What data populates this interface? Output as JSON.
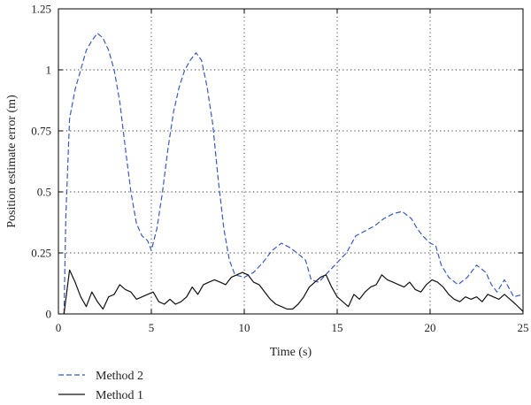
{
  "chart_data": {
    "type": "line",
    "xlabel": "Time (s)",
    "ylabel": "Position estimate error (m)",
    "xlim": [
      0,
      25
    ],
    "ylim": [
      0,
      1.25
    ],
    "x_ticks": [
      "0",
      "5",
      "10",
      "15",
      "20",
      "25"
    ],
    "y_ticks": [
      "0",
      "0.25",
      "0.5",
      "0.75",
      "1",
      "1.25"
    ],
    "grid": "dotted, at major ticks",
    "legend_placement": "below plot, left",
    "series": [
      {
        "name": "Method 2",
        "color": "#3a5bbf",
        "style": "dashed",
        "points": [
          [
            0.3,
            0.0
          ],
          [
            0.4,
            0.4
          ],
          [
            0.6,
            0.8
          ],
          [
            0.9,
            0.92
          ],
          [
            1.2,
            1.0
          ],
          [
            1.5,
            1.08
          ],
          [
            1.8,
            1.12
          ],
          [
            2.1,
            1.15
          ],
          [
            2.4,
            1.13
          ],
          [
            2.7,
            1.08
          ],
          [
            3.0,
            1.0
          ],
          [
            3.3,
            0.87
          ],
          [
            3.6,
            0.68
          ],
          [
            3.9,
            0.5
          ],
          [
            4.2,
            0.37
          ],
          [
            4.5,
            0.32
          ],
          [
            4.8,
            0.3
          ],
          [
            5.0,
            0.26
          ],
          [
            5.3,
            0.35
          ],
          [
            5.6,
            0.5
          ],
          [
            5.9,
            0.68
          ],
          [
            6.2,
            0.83
          ],
          [
            6.5,
            0.93
          ],
          [
            6.8,
            1.0
          ],
          [
            7.1,
            1.04
          ],
          [
            7.4,
            1.07
          ],
          [
            7.7,
            1.04
          ],
          [
            8.0,
            0.93
          ],
          [
            8.3,
            0.78
          ],
          [
            8.6,
            0.55
          ],
          [
            8.9,
            0.35
          ],
          [
            9.2,
            0.22
          ],
          [
            9.5,
            0.16
          ],
          [
            10.0,
            0.15
          ],
          [
            10.5,
            0.17
          ],
          [
            11.0,
            0.21
          ],
          [
            11.5,
            0.26
          ],
          [
            12.0,
            0.29
          ],
          [
            12.5,
            0.27
          ],
          [
            13.0,
            0.24
          ],
          [
            13.3,
            0.22
          ],
          [
            13.6,
            0.14
          ],
          [
            14.0,
            0.13
          ],
          [
            14.5,
            0.17
          ],
          [
            15.0,
            0.21
          ],
          [
            15.5,
            0.25
          ],
          [
            16.0,
            0.32
          ],
          [
            16.5,
            0.34
          ],
          [
            17.0,
            0.36
          ],
          [
            17.5,
            0.39
          ],
          [
            18.0,
            0.41
          ],
          [
            18.5,
            0.42
          ],
          [
            19.0,
            0.39
          ],
          [
            19.3,
            0.35
          ],
          [
            19.6,
            0.32
          ],
          [
            20.0,
            0.29
          ],
          [
            20.3,
            0.28
          ],
          [
            20.6,
            0.2
          ],
          [
            21.0,
            0.15
          ],
          [
            21.5,
            0.12
          ],
          [
            22.0,
            0.15
          ],
          [
            22.5,
            0.2
          ],
          [
            23.0,
            0.17
          ],
          [
            23.3,
            0.12
          ],
          [
            23.6,
            0.09
          ],
          [
            24.0,
            0.14
          ],
          [
            24.5,
            0.07
          ],
          [
            25.0,
            0.08
          ]
        ]
      },
      {
        "name": "Method 1",
        "color": "#111111",
        "style": "solid",
        "points": [
          [
            0.3,
            0.0
          ],
          [
            0.6,
            0.18
          ],
          [
            0.9,
            0.13
          ],
          [
            1.2,
            0.07
          ],
          [
            1.5,
            0.03
          ],
          [
            1.8,
            0.09
          ],
          [
            2.1,
            0.05
          ],
          [
            2.4,
            0.02
          ],
          [
            2.7,
            0.07
          ],
          [
            3.0,
            0.08
          ],
          [
            3.3,
            0.12
          ],
          [
            3.6,
            0.1
          ],
          [
            3.9,
            0.09
          ],
          [
            4.2,
            0.06
          ],
          [
            4.5,
            0.07
          ],
          [
            4.8,
            0.08
          ],
          [
            5.1,
            0.09
          ],
          [
            5.4,
            0.05
          ],
          [
            5.7,
            0.04
          ],
          [
            6.0,
            0.06
          ],
          [
            6.3,
            0.04
          ],
          [
            6.6,
            0.05
          ],
          [
            6.9,
            0.07
          ],
          [
            7.2,
            0.11
          ],
          [
            7.5,
            0.08
          ],
          [
            7.8,
            0.12
          ],
          [
            8.1,
            0.13
          ],
          [
            8.4,
            0.14
          ],
          [
            8.7,
            0.13
          ],
          [
            9.0,
            0.12
          ],
          [
            9.3,
            0.15
          ],
          [
            9.6,
            0.16
          ],
          [
            9.9,
            0.17
          ],
          [
            10.2,
            0.16
          ],
          [
            10.5,
            0.13
          ],
          [
            10.8,
            0.12
          ],
          [
            11.1,
            0.09
          ],
          [
            11.4,
            0.06
          ],
          [
            11.7,
            0.04
          ],
          [
            12.0,
            0.03
          ],
          [
            12.3,
            0.02
          ],
          [
            12.6,
            0.02
          ],
          [
            12.9,
            0.04
          ],
          [
            13.2,
            0.07
          ],
          [
            13.5,
            0.11
          ],
          [
            13.8,
            0.13
          ],
          [
            14.1,
            0.15
          ],
          [
            14.4,
            0.16
          ],
          [
            14.7,
            0.11
          ],
          [
            15.0,
            0.07
          ],
          [
            15.3,
            0.05
          ],
          [
            15.6,
            0.03
          ],
          [
            15.9,
            0.08
          ],
          [
            16.2,
            0.06
          ],
          [
            16.5,
            0.09
          ],
          [
            16.8,
            0.11
          ],
          [
            17.1,
            0.12
          ],
          [
            17.4,
            0.16
          ],
          [
            17.7,
            0.14
          ],
          [
            18.0,
            0.13
          ],
          [
            18.3,
            0.12
          ],
          [
            18.6,
            0.11
          ],
          [
            18.9,
            0.13
          ],
          [
            19.2,
            0.1
          ],
          [
            19.5,
            0.09
          ],
          [
            19.8,
            0.12
          ],
          [
            20.1,
            0.14
          ],
          [
            20.4,
            0.13
          ],
          [
            20.7,
            0.11
          ],
          [
            21.0,
            0.08
          ],
          [
            21.3,
            0.06
          ],
          [
            21.6,
            0.05
          ],
          [
            21.9,
            0.07
          ],
          [
            22.2,
            0.06
          ],
          [
            22.5,
            0.07
          ],
          [
            22.8,
            0.05
          ],
          [
            23.1,
            0.08
          ],
          [
            23.4,
            0.07
          ],
          [
            23.7,
            0.06
          ],
          [
            24.0,
            0.08
          ],
          [
            24.3,
            0.06
          ],
          [
            24.6,
            0.04
          ],
          [
            25.0,
            0.01
          ]
        ]
      }
    ]
  }
}
